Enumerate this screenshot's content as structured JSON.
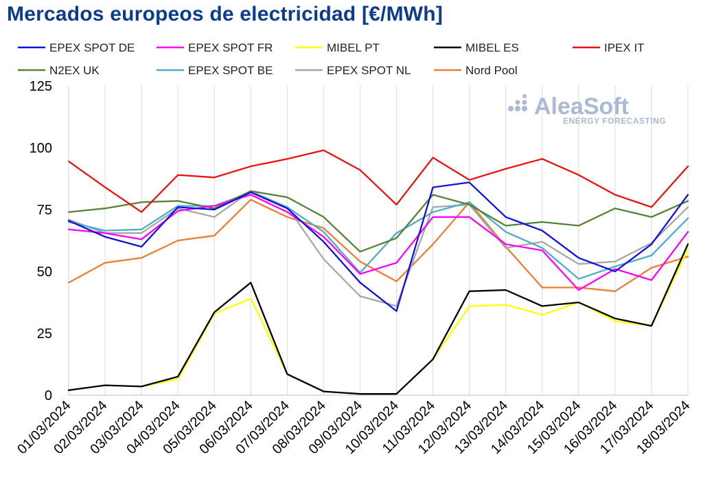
{
  "title": "Mercados europeos de electricidad [€/MWh]",
  "watermark": {
    "name": "AleaSoft",
    "tagline": "ENERGY FORECASTING"
  },
  "chart_data": {
    "type": "line",
    "title": "Mercados europeos de electricidad [€/MWh]",
    "xlabel": "",
    "ylabel": "",
    "ylim": [
      0,
      125
    ],
    "yticks": [
      0,
      25,
      50,
      75,
      100,
      125
    ],
    "grid": "vertical",
    "legend": "top",
    "categories": [
      "01/03/2024",
      "02/03/2024",
      "03/03/2024",
      "04/03/2024",
      "05/03/2024",
      "06/03/2024",
      "07/03/2024",
      "08/03/2024",
      "09/03/2024",
      "10/03/2024",
      "11/03/2024",
      "12/03/2024",
      "13/03/2024",
      "14/03/2024",
      "15/03/2024",
      "16/03/2024",
      "17/03/2024",
      "18/03/2024"
    ],
    "series": [
      {
        "name": "EPEX SPOT DE",
        "color": "#1010e0",
        "values": [
          70.5,
          64.0,
          60.0,
          76.0,
          75.0,
          82.0,
          75.5,
          62.0,
          45.5,
          34.0,
          84.0,
          86.0,
          72.0,
          66.5,
          55.5,
          50.0,
          61.0,
          81.0
        ]
      },
      {
        "name": "EPEX SPOT FR",
        "color": "#ff00ff",
        "values": [
          67.0,
          65.5,
          63.0,
          74.5,
          76.5,
          81.0,
          74.0,
          64.0,
          49.0,
          53.5,
          72.0,
          72.0,
          61.0,
          58.5,
          42.5,
          51.0,
          46.5,
          66.0
        ]
      },
      {
        "name": "MIBEL PT",
        "color": "#ffff00",
        "values": [
          2.0,
          4.0,
          3.5,
          6.5,
          33.0,
          39.0,
          8.5,
          1.5,
          0.5,
          0.5,
          14.5,
          36.0,
          36.5,
          32.5,
          37.5,
          30.0,
          28.0,
          59.0
        ]
      },
      {
        "name": "MIBEL ES",
        "color": "#000000",
        "values": [
          2.0,
          4.0,
          3.5,
          7.5,
          33.5,
          45.5,
          8.5,
          1.5,
          0.5,
          0.5,
          14.5,
          42.0,
          42.5,
          36.0,
          37.5,
          31.0,
          28.0,
          61.0
        ]
      },
      {
        "name": "IPEX IT",
        "color": "#ee1111",
        "values": [
          94.5,
          84.0,
          74.0,
          89.0,
          88.0,
          92.5,
          95.5,
          99.0,
          91.0,
          77.0,
          96.0,
          87.0,
          91.5,
          95.5,
          89.0,
          81.0,
          76.0,
          92.5
        ]
      },
      {
        "name": "N2EX UK",
        "color": "#548235",
        "values": [
          74.0,
          75.5,
          78.0,
          78.5,
          75.5,
          82.5,
          80.0,
          72.0,
          58.0,
          63.5,
          81.0,
          77.0,
          68.5,
          70.0,
          68.5,
          75.5,
          72.0,
          78.5
        ]
      },
      {
        "name": "EPEX SPOT BE",
        "color": "#4bacc6",
        "values": [
          70.0,
          66.5,
          67.0,
          76.5,
          76.5,
          82.0,
          76.0,
          66.0,
          49.5,
          65.5,
          74.0,
          78.0,
          66.0,
          59.5,
          47.0,
          52.0,
          56.5,
          71.5
        ]
      },
      {
        "name": "EPEX SPOT NL",
        "color": "#a6a6a6",
        "values": [
          71.0,
          65.5,
          65.5,
          75.5,
          72.0,
          82.5,
          76.0,
          55.0,
          40.0,
          36.0,
          76.0,
          77.0,
          59.5,
          62.0,
          53.0,
          54.0,
          61.5,
          76.0
        ]
      },
      {
        "name": "Nord Pool",
        "color": "#ed7d31",
        "values": [
          45.5,
          53.5,
          55.5,
          62.5,
          64.5,
          79.0,
          72.0,
          67.5,
          54.0,
          46.0,
          61.0,
          78.0,
          60.0,
          43.5,
          43.5,
          42.0,
          51.5,
          56.0
        ]
      }
    ]
  }
}
